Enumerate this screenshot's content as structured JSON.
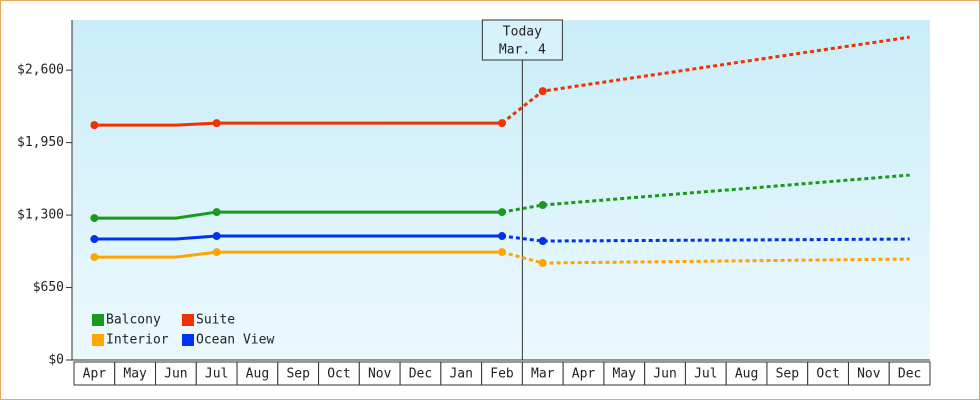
{
  "chart_data": {
    "type": "line",
    "categories": [
      "Apr",
      "May",
      "Jun",
      "Jul",
      "Aug",
      "Sep",
      "Oct",
      "Nov",
      "Dec",
      "Jan",
      "Feb",
      "Mar",
      "Apr",
      "May",
      "Jun",
      "Jul",
      "Aug",
      "Sep",
      "Oct",
      "Nov",
      "Dec"
    ],
    "series": [
      {
        "name": "Balcony",
        "color": "#1a9a1a",
        "values": [
          1273,
          1273,
          1273,
          1327,
          1327,
          1327,
          1327,
          1327,
          1327,
          1327,
          1327,
          1390,
          1420,
          1450,
          1480,
          1510,
          1539,
          1569,
          1599,
          1629,
          1659
        ]
      },
      {
        "name": "Suite",
        "color": "#ee3300",
        "values": [
          2107,
          2107,
          2107,
          2125,
          2125,
          2125,
          2125,
          2125,
          2125,
          2125,
          2125,
          2412,
          2466,
          2520,
          2573,
          2627,
          2681,
          2735,
          2789,
          2842,
          2896
        ]
      },
      {
        "name": "Interior",
        "color": "#ffa500",
        "values": [
          923,
          923,
          923,
          968,
          968,
          968,
          968,
          968,
          968,
          968,
          968,
          870,
          874,
          878,
          882,
          886,
          890,
          894,
          898,
          902,
          906
        ]
      },
      {
        "name": "Ocean View",
        "color": "#0033ee",
        "values": [
          1085,
          1085,
          1085,
          1112,
          1112,
          1112,
          1112,
          1112,
          1112,
          1112,
          1112,
          1067,
          1069,
          1071,
          1073,
          1075,
          1077,
          1079,
          1081,
          1083,
          1085
        ]
      }
    ],
    "ylim": [
      0,
      3050
    ],
    "yticks": [
      {
        "value": 0,
        "label": "$0"
      },
      {
        "value": 650,
        "label": "$650"
      },
      {
        "value": 1300,
        "label": "$1,300"
      },
      {
        "value": 1950,
        "label": "$1,950"
      },
      {
        "value": 2600,
        "label": "$2,600"
      }
    ],
    "annotation": {
      "label": "Today",
      "date": "Mar. 4",
      "x": 11
    },
    "legend": "lower-left"
  }
}
